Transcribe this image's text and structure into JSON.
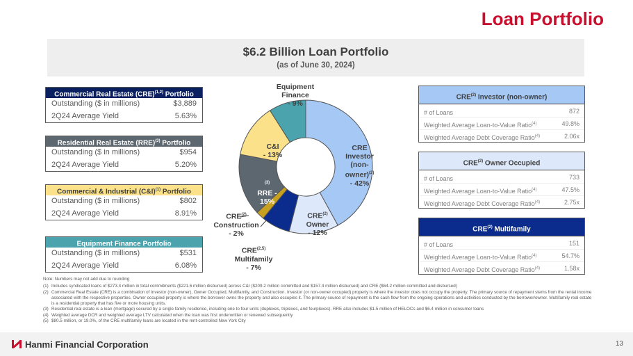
{
  "header": {
    "title": "Loan Portfolio"
  },
  "banner": {
    "title": "$6.2 Billion Loan Portfolio",
    "subtitle": "(as of June 30, 2024)"
  },
  "left_tables": [
    {
      "title": "Commercial Real Estate (CRE)",
      "sup": "(1,2)",
      "title_end": " Portfolio",
      "color": "#0b2060",
      "text": "#ffffff",
      "rows": [
        [
          "Outstanding ($ in millions)",
          "$3,889"
        ],
        [
          "2Q24 Average Yield",
          "5.63%"
        ]
      ]
    },
    {
      "title": "Residential Real Estate (RRE)",
      "sup": "(3)",
      "title_end": " Portfolio",
      "color": "#5d6770",
      "text": "#ffffff",
      "rows": [
        [
          "Outstanding ($ in millions)",
          "$954"
        ],
        [
          "2Q24 Average Yield",
          "5.20%"
        ]
      ]
    },
    {
      "title": "Commercial & Industrial (C&I)",
      "sup": "(1)",
      "title_end": " Portfolio",
      "color": "#fbe28a",
      "text": "#404040",
      "rows": [
        [
          "Outstanding ($ in millions)",
          "$802"
        ],
        [
          "2Q24 Average Yield",
          "8.91%"
        ]
      ]
    },
    {
      "title": "Equipment Finance Portfolio",
      "sup": "",
      "title_end": "",
      "color": "#4aa3ad",
      "text": "#ffffff",
      "rows": [
        [
          "Outstanding ($ in millions)",
          "$531"
        ],
        [
          "2Q24 Average Yield",
          "6.08%"
        ]
      ]
    }
  ],
  "right_tables": [
    {
      "title": "CRE",
      "sup": "(2)",
      "title_end": " Investor (non-owner)",
      "color": "#a6c8f5",
      "text": "#404040",
      "rows": [
        [
          "# of Loans",
          "",
          "872"
        ],
        [
          "Weighted Average Loan-to-Value Ratio",
          "(4)",
          "49.8%"
        ],
        [
          "Weighted Average Debt Coverage Ratio",
          "(4)",
          "2.06x"
        ]
      ]
    },
    {
      "title": "CRE",
      "sup": "(2)",
      "title_end": " Owner Occupied",
      "color": "#dde9fb",
      "text": "#404040",
      "rows": [
        [
          "# of Loans",
          "",
          "733"
        ],
        [
          "Weighted Average Loan-to-Value Ratio",
          "(4)",
          "47.5%"
        ],
        [
          "Weighted Average Debt Coverage Ratio",
          "(4)",
          "2.75x"
        ]
      ]
    },
    {
      "title": "CRE",
      "sup": "(2)",
      "title_end": " Multifamily",
      "color": "#0b2c8c",
      "text": "#ffffff",
      "rows": [
        [
          "# of Loans",
          "",
          "151"
        ],
        [
          "Weighted Average Loan-to-Value Ratio",
          "(4)",
          "54.7%"
        ],
        [
          "Weighted Average Debt Coverage Ratio",
          "(4)",
          "1.58x"
        ]
      ]
    }
  ],
  "chart_data": {
    "type": "pie",
    "donut": true,
    "categories": [
      "CRE Investor (non-owner)",
      "CRE Owner",
      "CRE Multifamily",
      "CRE Construction",
      "RRE",
      "C&I",
      "Equipment Finance"
    ],
    "values": [
      42,
      12,
      7,
      2,
      15,
      13,
      9
    ],
    "colors": [
      "#a6c8f5",
      "#dde9fb",
      "#0b2c8c",
      "#c8a020",
      "#5d6770",
      "#fbe28a",
      "#4aa3ad"
    ],
    "labels": [
      {
        "l1": "CRE",
        "l2": "Investor",
        "l3": "(non-",
        "l4": "owner)",
        "sup": "(2)",
        "pct": "- 42%"
      },
      {
        "l1": "CRE",
        "l2": "Owner",
        "sup": "(2)",
        "pct": "- 12%"
      },
      {
        "l1": "CRE",
        "l2": "Multifamily",
        "sup": "(2,5)",
        "pct": "- 7%"
      },
      {
        "l1": "CRE",
        "l2": "Construction",
        "sup": "(2)",
        "pct": "- 2%"
      },
      {
        "l1": "RRE -",
        "sup": "(3)",
        "pct": "15%"
      },
      {
        "l1": "C&I",
        "pct": "- 13%"
      },
      {
        "l1": "Equipment",
        "l2": "Finance",
        "pct": "- 9%"
      }
    ]
  },
  "notes": {
    "note": "Note: Numbers may not add due to rounding",
    "items": [
      [
        "(1)",
        "Includes syndicated loans of $273.4 million in total commitments ($221.6 million disbursed) across C&I ($209.2 million committed and $157.4 million disbursed) and CRE ($64.2 million committed and disbursed)"
      ],
      [
        "(2)",
        "Commercial Real Estate (CRE) is a combination of Investor (non-owner), Owner Occupied, Multifamily, and Construction. Investor (or non-owner occupied) property is where the investor does not occupy the property. The primary source of repayment stems from the rental income associated with the respective properties. Owner occupied property is where the borrower owns the property and also occupies it. The primary source of repayment is the cash flow from the ongoing operations and activities conducted by the borrower/owner. Multifamily real estate is a residential property that has five or more housing units."
      ],
      [
        "(3)",
        "Residential real estate is a loan (mortgage) secured by a single family residence, including one to four units (duplexes, triplexes, and fourplexes). RRE also includes $1.5 million of HELOCs and $6.4 million in consumer loans"
      ],
      [
        "(4)",
        "Weighted average DCR and weighted average LTV calculated when the loan was first underwritten or renewed subsequently"
      ],
      [
        "(5)",
        "$80.5 million, or 19.0%, of the CRE multifamily loans are located in the rent-controlled New York City"
      ]
    ]
  },
  "footer": {
    "company": "Hanmi Financial Corporation",
    "page": "13"
  }
}
